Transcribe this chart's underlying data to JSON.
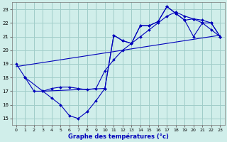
{
  "xlabel": "Graphe des températures (°c)",
  "bg_color": "#d0eeea",
  "grid_color": "#a0ccc8",
  "line_color": "#0000bb",
  "xlim": [
    -0.5,
    23.5
  ],
  "ylim": [
    14.5,
    23.5
  ],
  "xticks": [
    0,
    1,
    2,
    3,
    4,
    5,
    6,
    7,
    8,
    9,
    10,
    11,
    12,
    13,
    14,
    15,
    16,
    17,
    18,
    19,
    20,
    21,
    22,
    23
  ],
  "yticks": [
    15,
    16,
    17,
    18,
    19,
    20,
    21,
    22,
    23
  ],
  "series": [
    {
      "x": [
        0,
        1,
        2,
        3,
        4,
        5,
        6,
        7,
        8,
        9,
        10,
        11,
        12,
        13,
        14,
        15,
        16,
        17,
        18,
        19,
        20,
        21,
        22,
        23
      ],
      "y": [
        19,
        18,
        17,
        17,
        16.5,
        16.0,
        15.2,
        15.0,
        15.5,
        16.3,
        17.2,
        21.1,
        20.7,
        20.5,
        21.8,
        21.8,
        22.1,
        23.2,
        22.7,
        22.2,
        21.0,
        22.0,
        21.5,
        21.0
      ],
      "marker": true
    },
    {
      "x": [
        0,
        23
      ],
      "y": [
        18.8,
        21.1
      ],
      "marker": false
    },
    {
      "x": [
        1,
        3,
        4,
        5,
        6,
        7,
        8,
        9,
        10,
        11,
        12,
        13,
        14,
        15,
        16,
        17,
        18,
        19,
        20,
        21,
        22,
        23
      ],
      "y": [
        18.0,
        17.0,
        17.2,
        17.3,
        17.3,
        17.2,
        17.1,
        17.2,
        18.5,
        19.3,
        20.0,
        20.5,
        21.0,
        21.5,
        22.0,
        22.5,
        22.8,
        22.5,
        22.3,
        22.2,
        22.0,
        21.0
      ],
      "marker": true
    },
    {
      "x": [
        3,
        10,
        11,
        12,
        13,
        14,
        15,
        16,
        17,
        18,
        19,
        20,
        21,
        22,
        23
      ],
      "y": [
        17.0,
        17.2,
        21.1,
        20.7,
        20.5,
        21.8,
        21.8,
        22.1,
        23.2,
        22.7,
        22.2,
        22.3,
        22.0,
        22.0,
        21.0
      ],
      "marker": true
    }
  ]
}
